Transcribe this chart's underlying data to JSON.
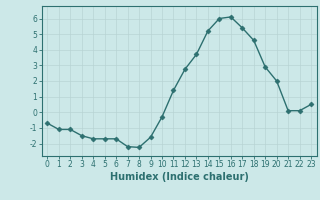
{
  "x": [
    0,
    1,
    2,
    3,
    4,
    5,
    6,
    7,
    8,
    9,
    10,
    11,
    12,
    13,
    14,
    15,
    16,
    17,
    18,
    19,
    20,
    21,
    22,
    23
  ],
  "y": [
    -0.7,
    -1.1,
    -1.1,
    -1.5,
    -1.7,
    -1.7,
    -1.7,
    -2.2,
    -2.25,
    -1.6,
    -0.3,
    1.4,
    2.75,
    3.7,
    5.2,
    6.0,
    6.1,
    5.4,
    4.6,
    2.9,
    2.0,
    0.1,
    0.1,
    0.5
  ],
  "line_color": "#2d7070",
  "marker": "D",
  "markersize": 2.5,
  "linewidth": 1.0,
  "xlabel": "Humidex (Indice chaleur)",
  "xlabel_fontsize": 7,
  "ylim": [
    -2.8,
    6.8
  ],
  "xlim": [
    -0.5,
    23.5
  ],
  "yticks": [
    -2,
    -1,
    0,
    1,
    2,
    3,
    4,
    5,
    6
  ],
  "xticks": [
    0,
    1,
    2,
    3,
    4,
    5,
    6,
    7,
    8,
    9,
    10,
    11,
    12,
    13,
    14,
    15,
    16,
    17,
    18,
    19,
    20,
    21,
    22,
    23
  ],
  "bg_color": "#cce8e8",
  "grid_color": "#b8d4d4",
  "tick_fontsize": 5.5,
  "spine_color": "#2d7070"
}
